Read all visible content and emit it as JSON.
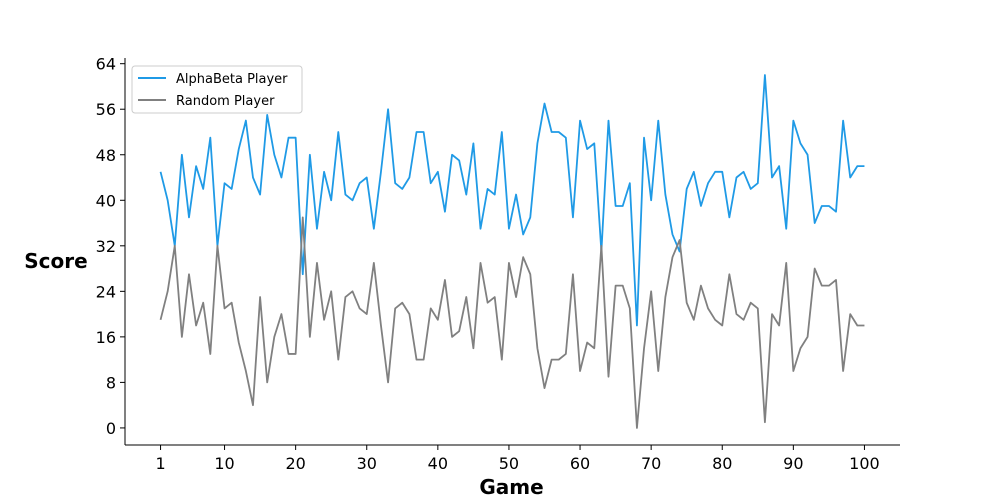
{
  "chart_data": {
    "type": "line",
    "title": "",
    "xlabel": "Game",
    "ylabel": "Score",
    "xlim": [
      -4,
      105
    ],
    "ylim": [
      -3,
      65
    ],
    "x_ticks": [
      1,
      10,
      20,
      30,
      40,
      50,
      60,
      70,
      80,
      90,
      100
    ],
    "y_ticks": [
      0,
      8,
      16,
      24,
      32,
      40,
      48,
      56,
      64
    ],
    "grid": false,
    "legend_position": "top-left",
    "series": [
      {
        "name": "AlphaBeta Player",
        "color": "#1f9ae6",
        "values": [
          45,
          40,
          32,
          48,
          37,
          46,
          42,
          51,
          32,
          43,
          42,
          49,
          54,
          44,
          41,
          55,
          48,
          44,
          51,
          51,
          27,
          48,
          35,
          45,
          40,
          52,
          41,
          40,
          43,
          44,
          35,
          45,
          56,
          43,
          42,
          44,
          52,
          52,
          43,
          45,
          38,
          48,
          47,
          41,
          50,
          35,
          42,
          41,
          52,
          35,
          41,
          34,
          37,
          50,
          57,
          52,
          52,
          51,
          37,
          54,
          49,
          50,
          31,
          54,
          39,
          39,
          43,
          18,
          51,
          40,
          54,
          41,
          34,
          31,
          42,
          45,
          39,
          43,
          45,
          45,
          37,
          44,
          45,
          42,
          43,
          62,
          44,
          46,
          35,
          54,
          50,
          48,
          36,
          39,
          39,
          38,
          54,
          44,
          46,
          46
        ]
      },
      {
        "name": "Random Player",
        "color": "#808080",
        "values": [
          19,
          24,
          32,
          16,
          27,
          18,
          22,
          13,
          32,
          21,
          22,
          15,
          10,
          4,
          23,
          8,
          16,
          20,
          13,
          13,
          37,
          16,
          29,
          19,
          24,
          12,
          23,
          24,
          21,
          20,
          29,
          18,
          8,
          21,
          22,
          20,
          12,
          12,
          21,
          19,
          26,
          16,
          17,
          23,
          14,
          29,
          22,
          23,
          12,
          29,
          23,
          30,
          27,
          14,
          7,
          12,
          12,
          13,
          27,
          10,
          15,
          14,
          32,
          9,
          25,
          25,
          21,
          0,
          14,
          24,
          10,
          23,
          30,
          33,
          22,
          19,
          25,
          21,
          19,
          18,
          27,
          20,
          19,
          22,
          21,
          1,
          20,
          18,
          29,
          10,
          14,
          16,
          28,
          25,
          25,
          26,
          10,
          20,
          18,
          18
        ]
      }
    ]
  }
}
